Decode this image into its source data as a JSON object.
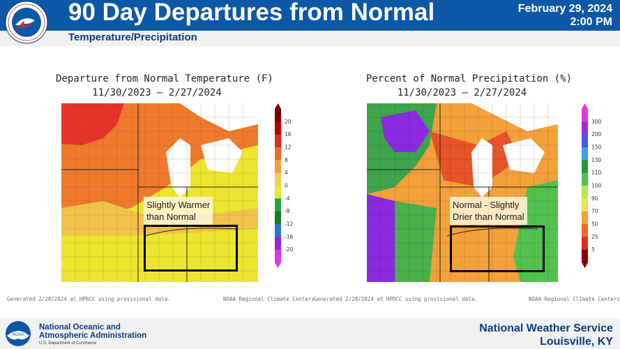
{
  "header": {
    "title": "90 Day Departures from Normal",
    "subtitle": "Temperature/Precipitation",
    "date": "February 29, 2024",
    "time": "2:00 PM",
    "logo_text": "NATIONAL WEATHER SERVICE"
  },
  "temp_map": {
    "title_line1": "Departure from Normal Temperature (F)",
    "title_line2": "11/30/2023 – 2/27/2024",
    "callout_line1": "Slightly Warmer",
    "callout_line2": "than Normal",
    "colorbar_labels": [
      "20",
      "16",
      "12",
      "8",
      "4",
      "0",
      "-4",
      "-8",
      "-12",
      "-16",
      "-20"
    ],
    "colorbar_colors": [
      "#7a0000",
      "#b80000",
      "#e02b1e",
      "#ef6b25",
      "#f3a13a",
      "#f2cf4e",
      "#e7e734",
      "#28a23a",
      "#1c7a2c",
      "#2f74d0",
      "#8a2be2",
      "#d838e8"
    ],
    "footnote_left": "Generated 2/28/2024 at HPRCC using provisional data.",
    "footnote_right": "NOAA Regional Climate Centers"
  },
  "precip_map": {
    "title_line1": "Percent of Normal Precipitation (%)",
    "title_line2": "11/30/2023 – 2/27/2024",
    "callout_line1": "Normal - Slightly",
    "callout_line2": "Drier than Normal",
    "colorbar_labels": [
      "300",
      "200",
      "150",
      "130",
      "110",
      "100",
      "90",
      "70",
      "50",
      "25",
      "5"
    ],
    "colorbar_colors": [
      "#e23ad8",
      "#9b30c8",
      "#4a56e0",
      "#3aa0e8",
      "#1e9a3a",
      "#52c24e",
      "#b8e55a",
      "#f2df5a",
      "#f3a13a",
      "#ef6b25",
      "#e02b1e",
      "#8a0000"
    ],
    "footnote_left": "Generated 2/28/2024 at HPRCC using provisional data.",
    "footnote_right": "NOAA Regional Climate Centers"
  },
  "footer": {
    "noaa_line1": "National Oceanic and",
    "noaa_line2": "Atmospheric Administration",
    "noaa_dept": "U.S. Department of Commerce",
    "noaa_logo_text": "NOAA",
    "nws_line1": "National Weather Service",
    "nws_line2": "Louisville, KY"
  }
}
